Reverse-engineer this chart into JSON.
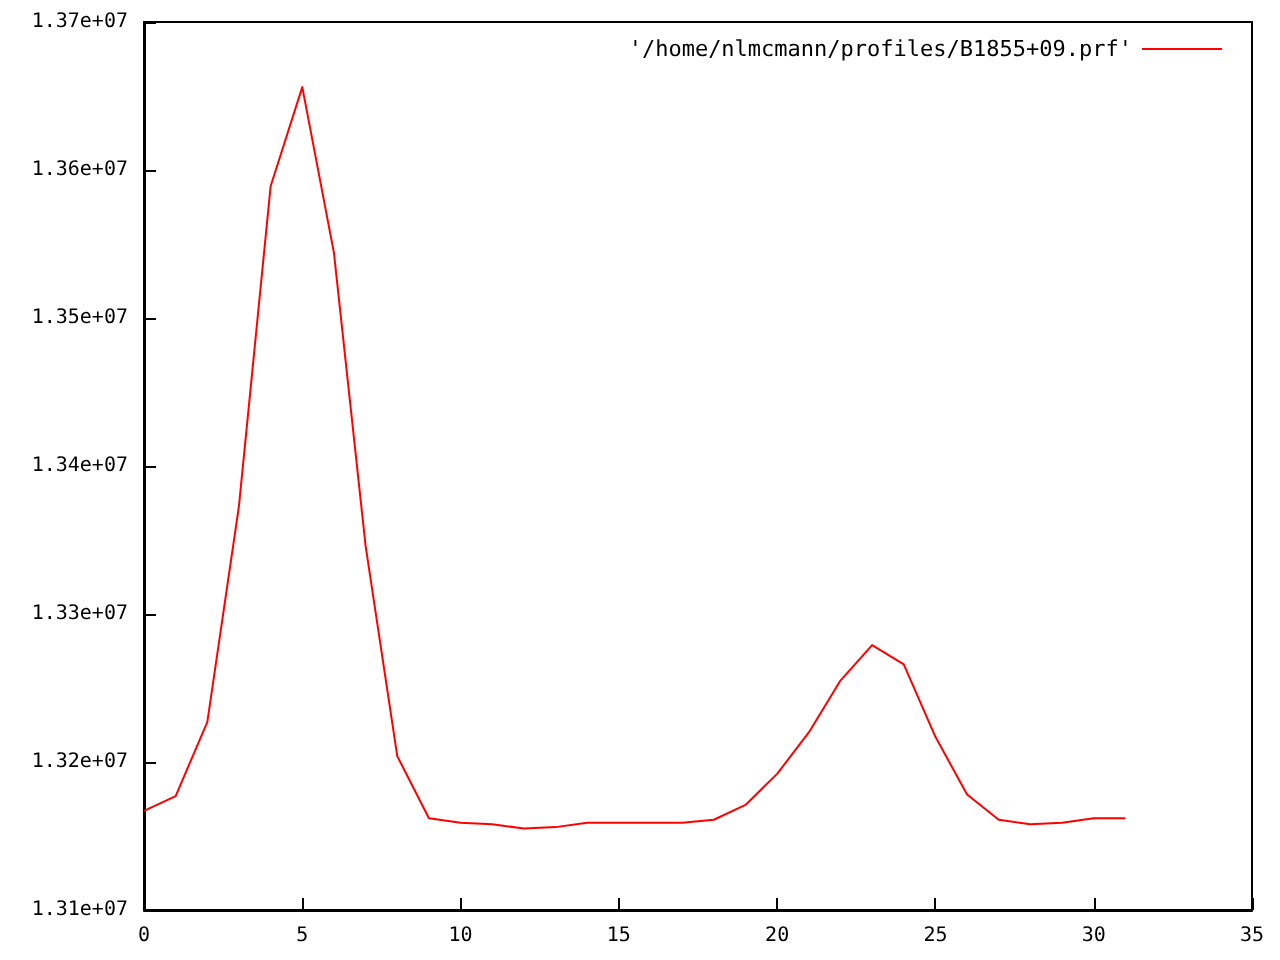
{
  "chart_data": {
    "type": "line",
    "x": [
      0,
      1,
      2,
      3,
      4,
      5,
      6,
      7,
      8,
      9,
      10,
      11,
      12,
      13,
      14,
      15,
      16,
      17,
      18,
      19,
      20,
      21,
      22,
      23,
      24,
      25,
      26,
      27,
      28,
      29,
      30,
      31
    ],
    "series": [
      {
        "name": "'/home/nlmcmann/profiles/B1855+09.prf'",
        "color": "#ff0000",
        "values": [
          13167000,
          13177000,
          13227000,
          13373000,
          13589000,
          13656000,
          13544000,
          13346000,
          13204000,
          13162000,
          13159000,
          13158000,
          13155000,
          13156000,
          13159000,
          13159000,
          13159000,
          13159000,
          13161000,
          13171000,
          13192000,
          13220000,
          13255000,
          13279000,
          13266000,
          13217000,
          13178000,
          13161000,
          13158000,
          13159000,
          13162000,
          13162000
        ]
      }
    ],
    "xlim": [
      0,
      35
    ],
    "xticks": [
      0,
      5,
      10,
      15,
      20,
      25,
      30,
      35
    ],
    "ylim": [
      13100000,
      13700000
    ],
    "yticks": [
      {
        "value": 13100000,
        "label": "1.31e+07"
      },
      {
        "value": 13200000,
        "label": "1.32e+07"
      },
      {
        "value": 13300000,
        "label": "1.33e+07"
      },
      {
        "value": 13400000,
        "label": "1.34e+07"
      },
      {
        "value": 13500000,
        "label": "1.35e+07"
      },
      {
        "value": 13600000,
        "label": "1.36e+07"
      },
      {
        "value": 13700000,
        "label": "1.37e+07"
      }
    ],
    "grid": false,
    "legend": "top right",
    "marker": "none",
    "line_style": "solid"
  }
}
